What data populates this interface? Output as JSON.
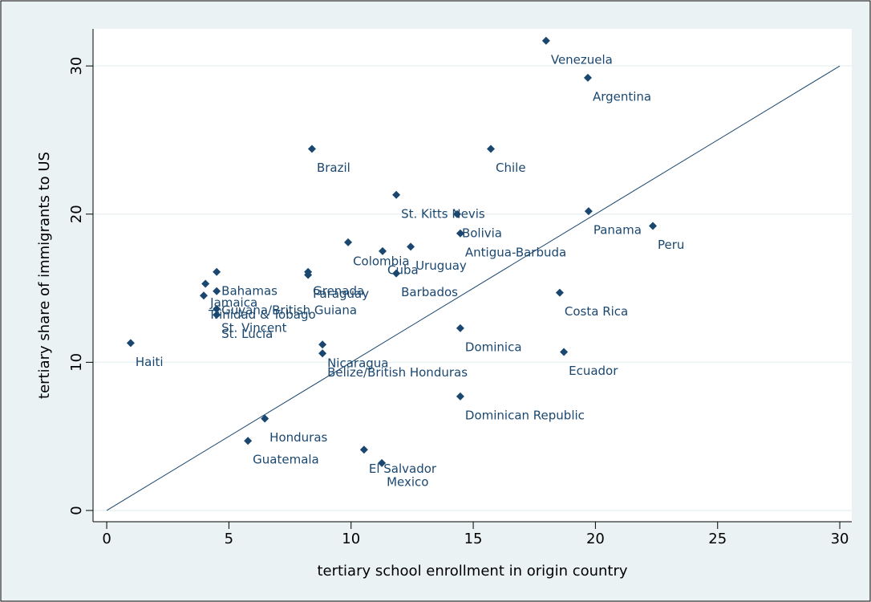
{
  "chart_data": {
    "type": "scatter",
    "xlabel": "tertiary school enrollment in origin country",
    "ylabel": "tertiary share of immigrants to US",
    "labels": [
      "Venezuela",
      "Argentina",
      "Brazil",
      "Chile",
      "St. Kitts Nevis",
      "Bolivia",
      "Antigua-Barbuda",
      "Uruguay",
      "Cuba",
      "Colombia",
      "Barbados",
      "Panama",
      "Peru",
      "Costa Rica",
      "Dominica",
      "Ecuador",
      "Dominican Republic",
      "Haiti",
      "Honduras",
      "Guatemala",
      "El Salvador",
      "Mexico",
      "Nicaragua",
      "Belize/British Honduras",
      "Grenada",
      "Paraguay",
      "Bahamas",
      "Jamaica",
      "Trinidad & Tobago",
      "Guyana/British Guiana",
      "St. Vincent",
      "St. Lucia"
    ],
    "x": [
      17.98,
      19.69,
      8.4,
      15.72,
      11.85,
      14.34,
      14.47,
      12.44,
      11.29,
      9.88,
      11.85,
      19.72,
      22.35,
      18.54,
      14.47,
      18.71,
      14.47,
      0.98,
      6.47,
      5.78,
      10.53,
      11.26,
      8.83,
      8.83,
      8.24,
      8.24,
      4.5,
      4.04,
      3.97,
      4.5,
      4.5,
      4.5
    ],
    "y": [
      31.7,
      29.2,
      24.4,
      24.4,
      21.3,
      20.0,
      18.7,
      17.8,
      17.5,
      18.1,
      16.0,
      20.2,
      19.2,
      14.7,
      12.3,
      10.7,
      7.7,
      11.3,
      6.2,
      4.7,
      4.1,
      3.2,
      11.2,
      10.6,
      16.1,
      15.9,
      16.1,
      15.3,
      14.5,
      14.8,
      13.6,
      13.2
    ],
    "color": "#1a476f",
    "xlim": [
      -0.56,
      30.49
    ],
    "ylim": [
      -0.76,
      32.5
    ],
    "xticks": [
      0,
      5,
      10,
      15,
      20,
      25,
      30
    ],
    "yticks": [
      0,
      10,
      20,
      30
    ],
    "grid": true
  }
}
